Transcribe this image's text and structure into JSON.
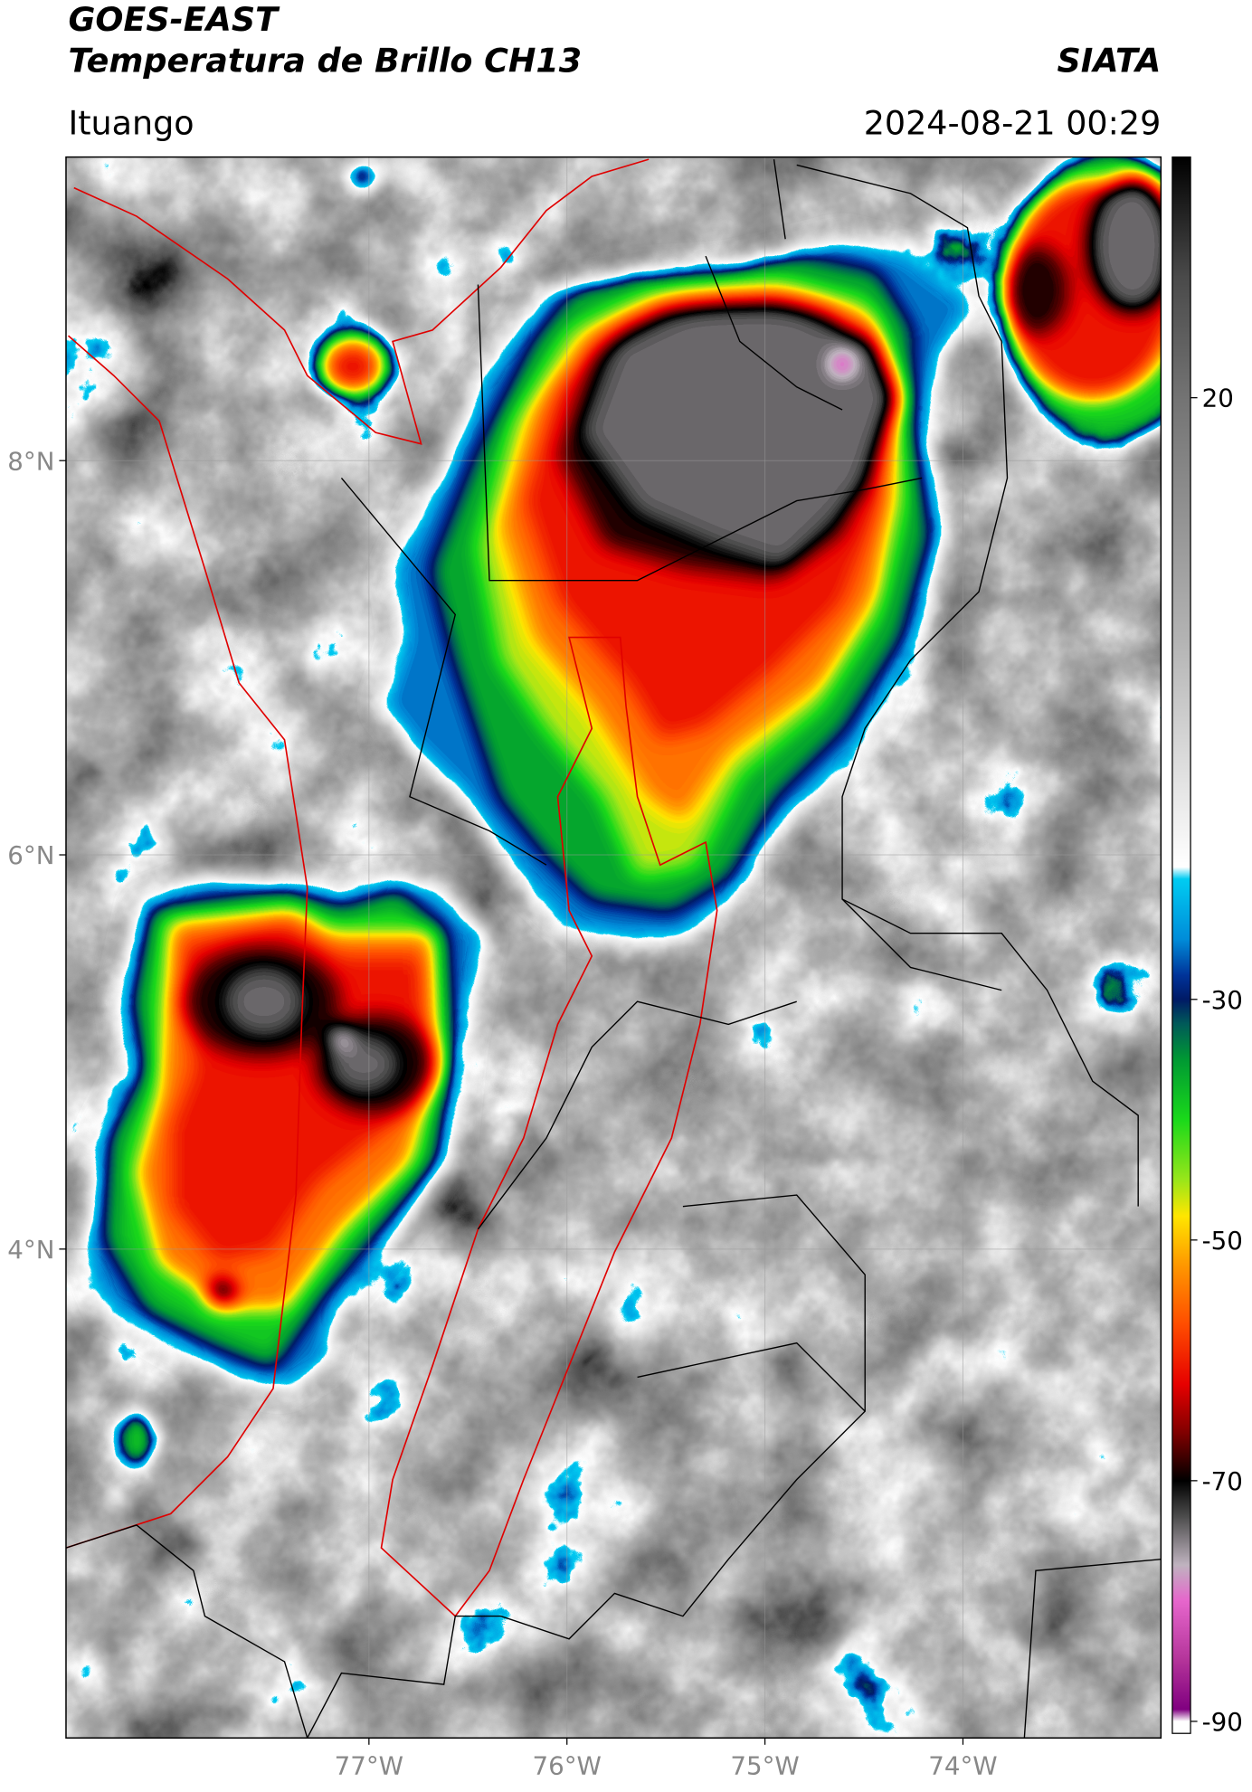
{
  "header": {
    "title": "GOES-EAST",
    "subtitle": "Temperatura de Brillo CH13",
    "organization": "SIATA",
    "location": "Ituango",
    "timestamp": "2024-08-21 00:29"
  },
  "map": {
    "lon_range": [
      -78.53,
      -73.0
    ],
    "lat_range": [
      1.52,
      9.54
    ],
    "lon_ticks": [
      {
        "value": -77,
        "label": "77°W"
      },
      {
        "value": -76,
        "label": "76°W"
      },
      {
        "value": -75,
        "label": "75°W"
      },
      {
        "value": -74,
        "label": "74°W"
      }
    ],
    "lat_ticks": [
      {
        "value": 8,
        "label": "8°N"
      },
      {
        "value": 6,
        "label": "6°N"
      },
      {
        "value": 4,
        "label": "4°N"
      }
    ],
    "grid": true
  },
  "colorbar": {
    "range": [
      -91,
      40
    ],
    "ticks": [
      20,
      -30,
      -50,
      -70,
      -90
    ],
    "colormap": [
      {
        "value": 40,
        "color": "#000000"
      },
      {
        "value": 30,
        "color": "#4a4a4a"
      },
      {
        "value": 20,
        "color": "#737373"
      },
      {
        "value": 0,
        "color": "#b3b3b3"
      },
      {
        "value": -19,
        "color": "#ffffff"
      },
      {
        "value": -20,
        "color": "#00ccf2"
      },
      {
        "value": -25,
        "color": "#008cd9"
      },
      {
        "value": -28,
        "color": "#003399"
      },
      {
        "value": -30,
        "color": "#001a66"
      },
      {
        "value": -32,
        "color": "#005959"
      },
      {
        "value": -35,
        "color": "#009933"
      },
      {
        "value": -40,
        "color": "#1ad91a"
      },
      {
        "value": -45,
        "color": "#99e61a"
      },
      {
        "value": -48,
        "color": "#ffe600"
      },
      {
        "value": -52,
        "color": "#ff9900"
      },
      {
        "value": -57,
        "color": "#ff4d00"
      },
      {
        "value": -62,
        "color": "#e60000"
      },
      {
        "value": -66,
        "color": "#800000"
      },
      {
        "value": -70,
        "color": "#000000"
      },
      {
        "value": -73,
        "color": "#4d4d4d"
      },
      {
        "value": -77,
        "color": "#bfb3bf"
      },
      {
        "value": -80,
        "color": "#e666cc"
      },
      {
        "value": -85,
        "color": "#b33399"
      },
      {
        "value": -89,
        "color": "#800080"
      },
      {
        "value": -90,
        "color": "#ffffff"
      },
      {
        "value": -91,
        "color": "#ffffff"
      }
    ]
  }
}
